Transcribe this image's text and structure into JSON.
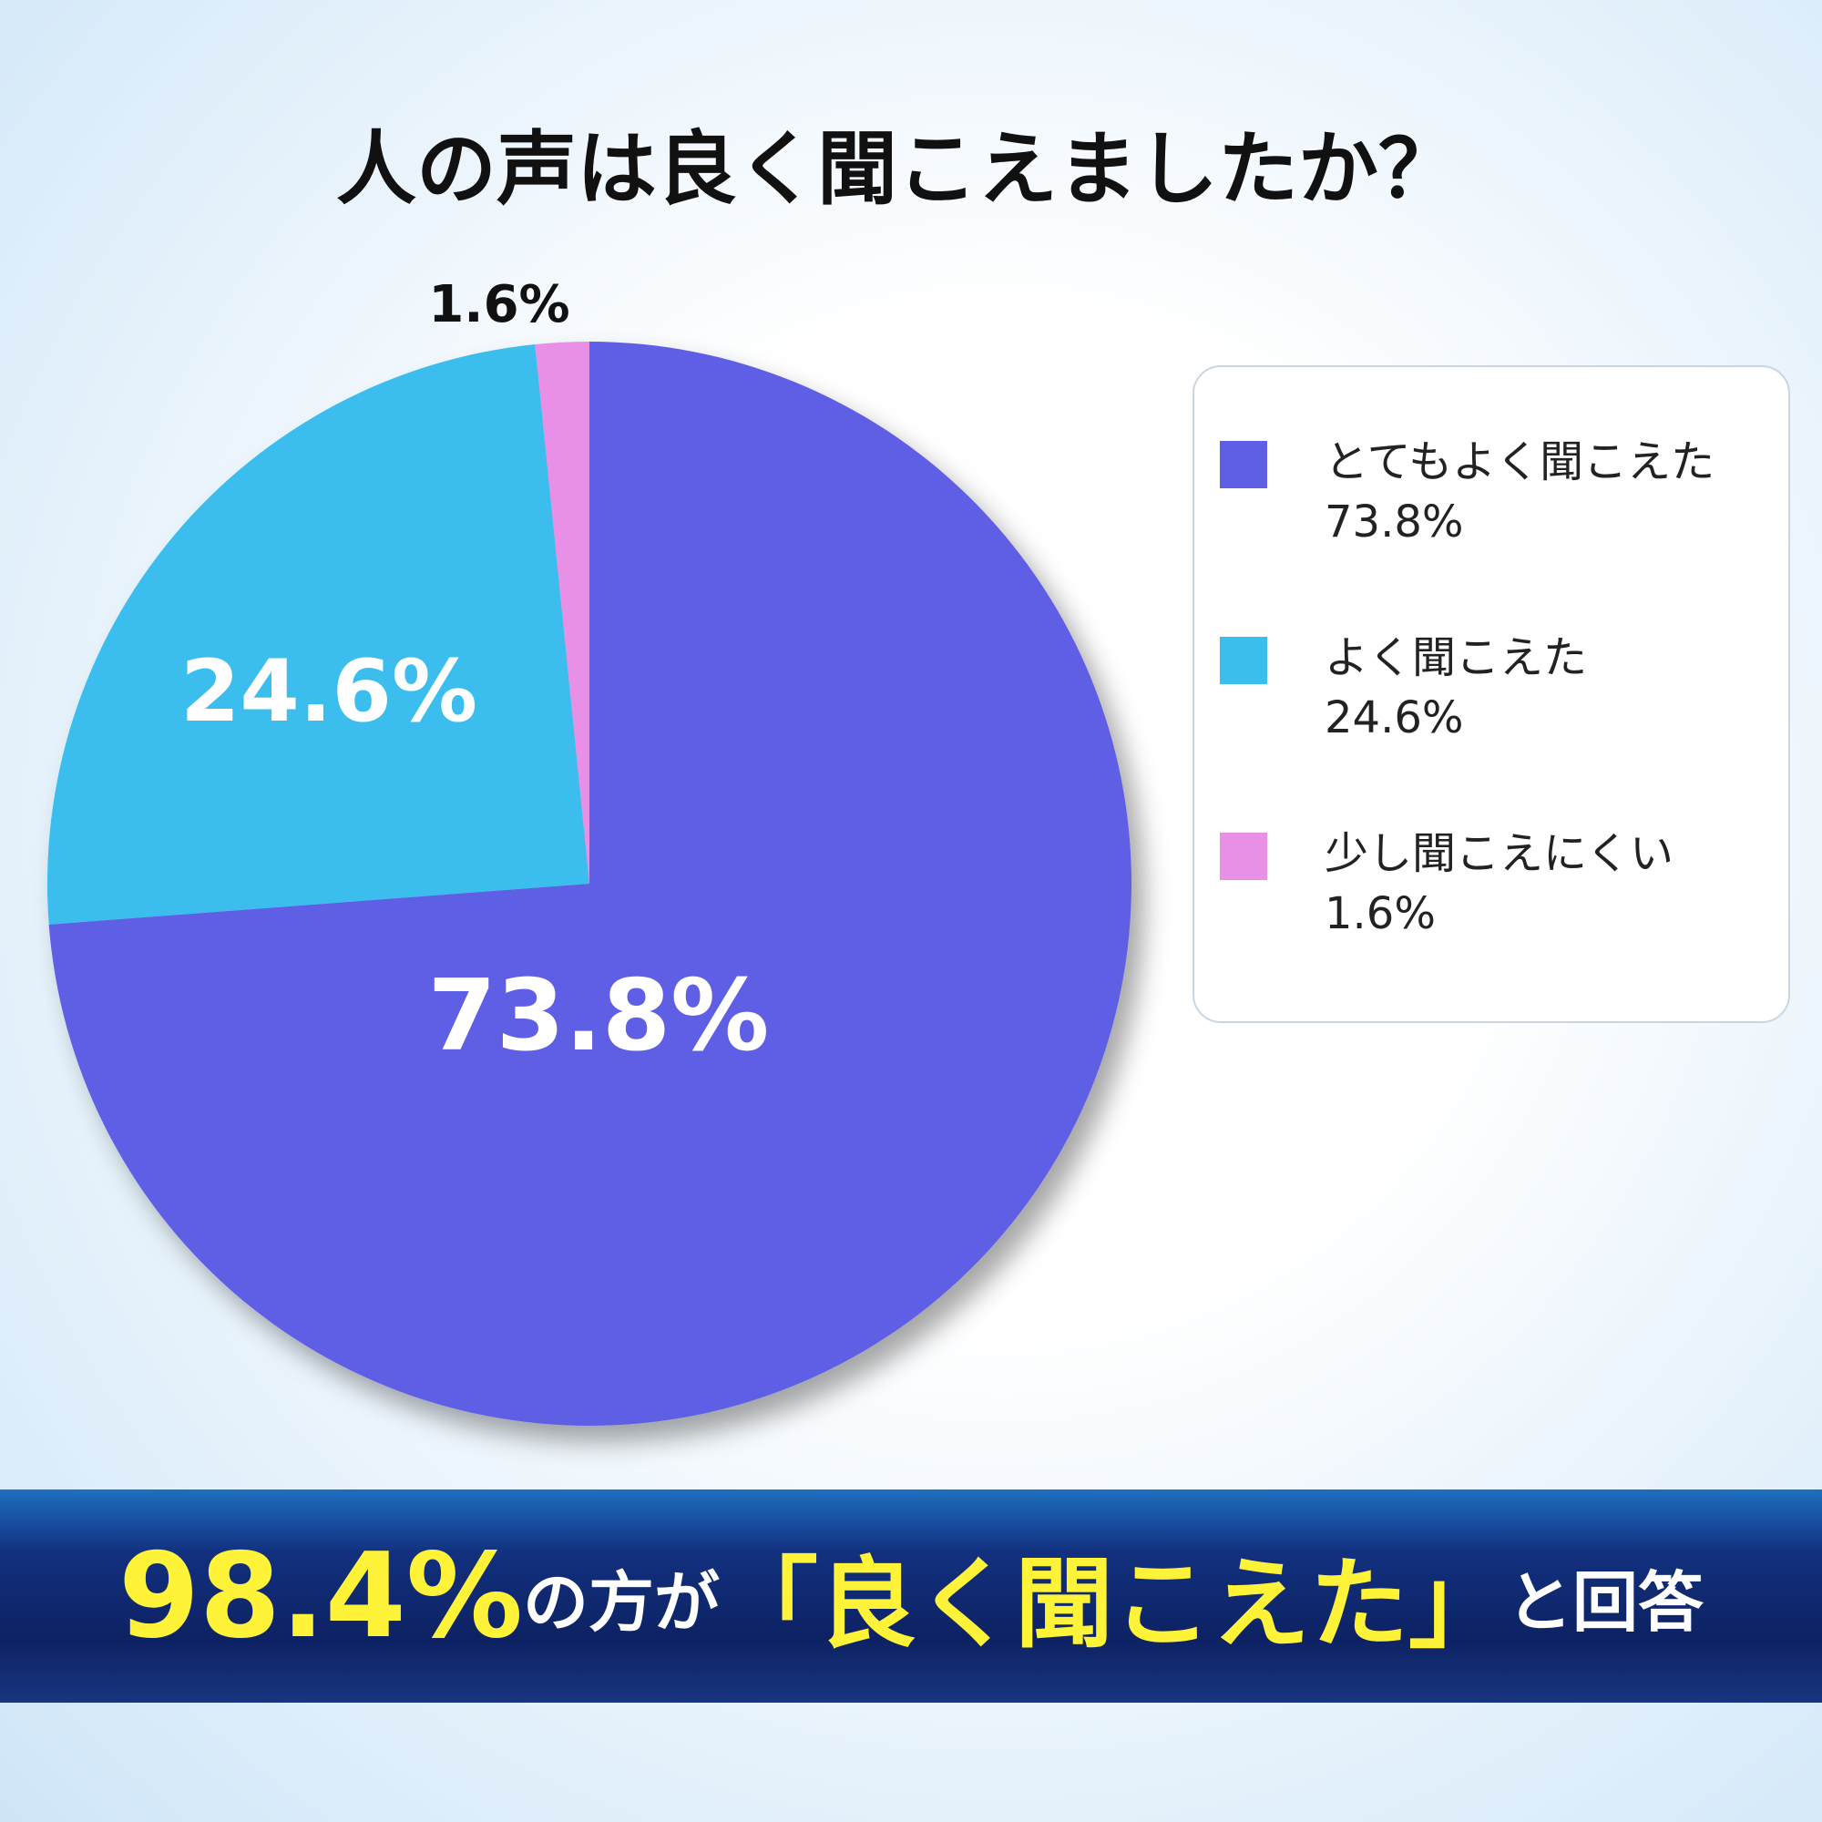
{
  "chart_data": {
    "type": "pie",
    "title": "人の声は良く聞こえましたか？",
    "categories": [
      "とてもよく聞こえた",
      "よく聞こえた",
      "少し聞こえにくい"
    ],
    "values": [
      73.8,
      24.6,
      1.6
    ],
    "value_labels": [
      "73.8%",
      "24.6%",
      "1.6%"
    ],
    "colors": [
      "#5f5fe6",
      "#3bbdee",
      "#e88fe6"
    ],
    "legend": "right",
    "annotations": [
      "98.4%",
      "の方が",
      "「良く聞こえた」",
      "と回答"
    ]
  }
}
